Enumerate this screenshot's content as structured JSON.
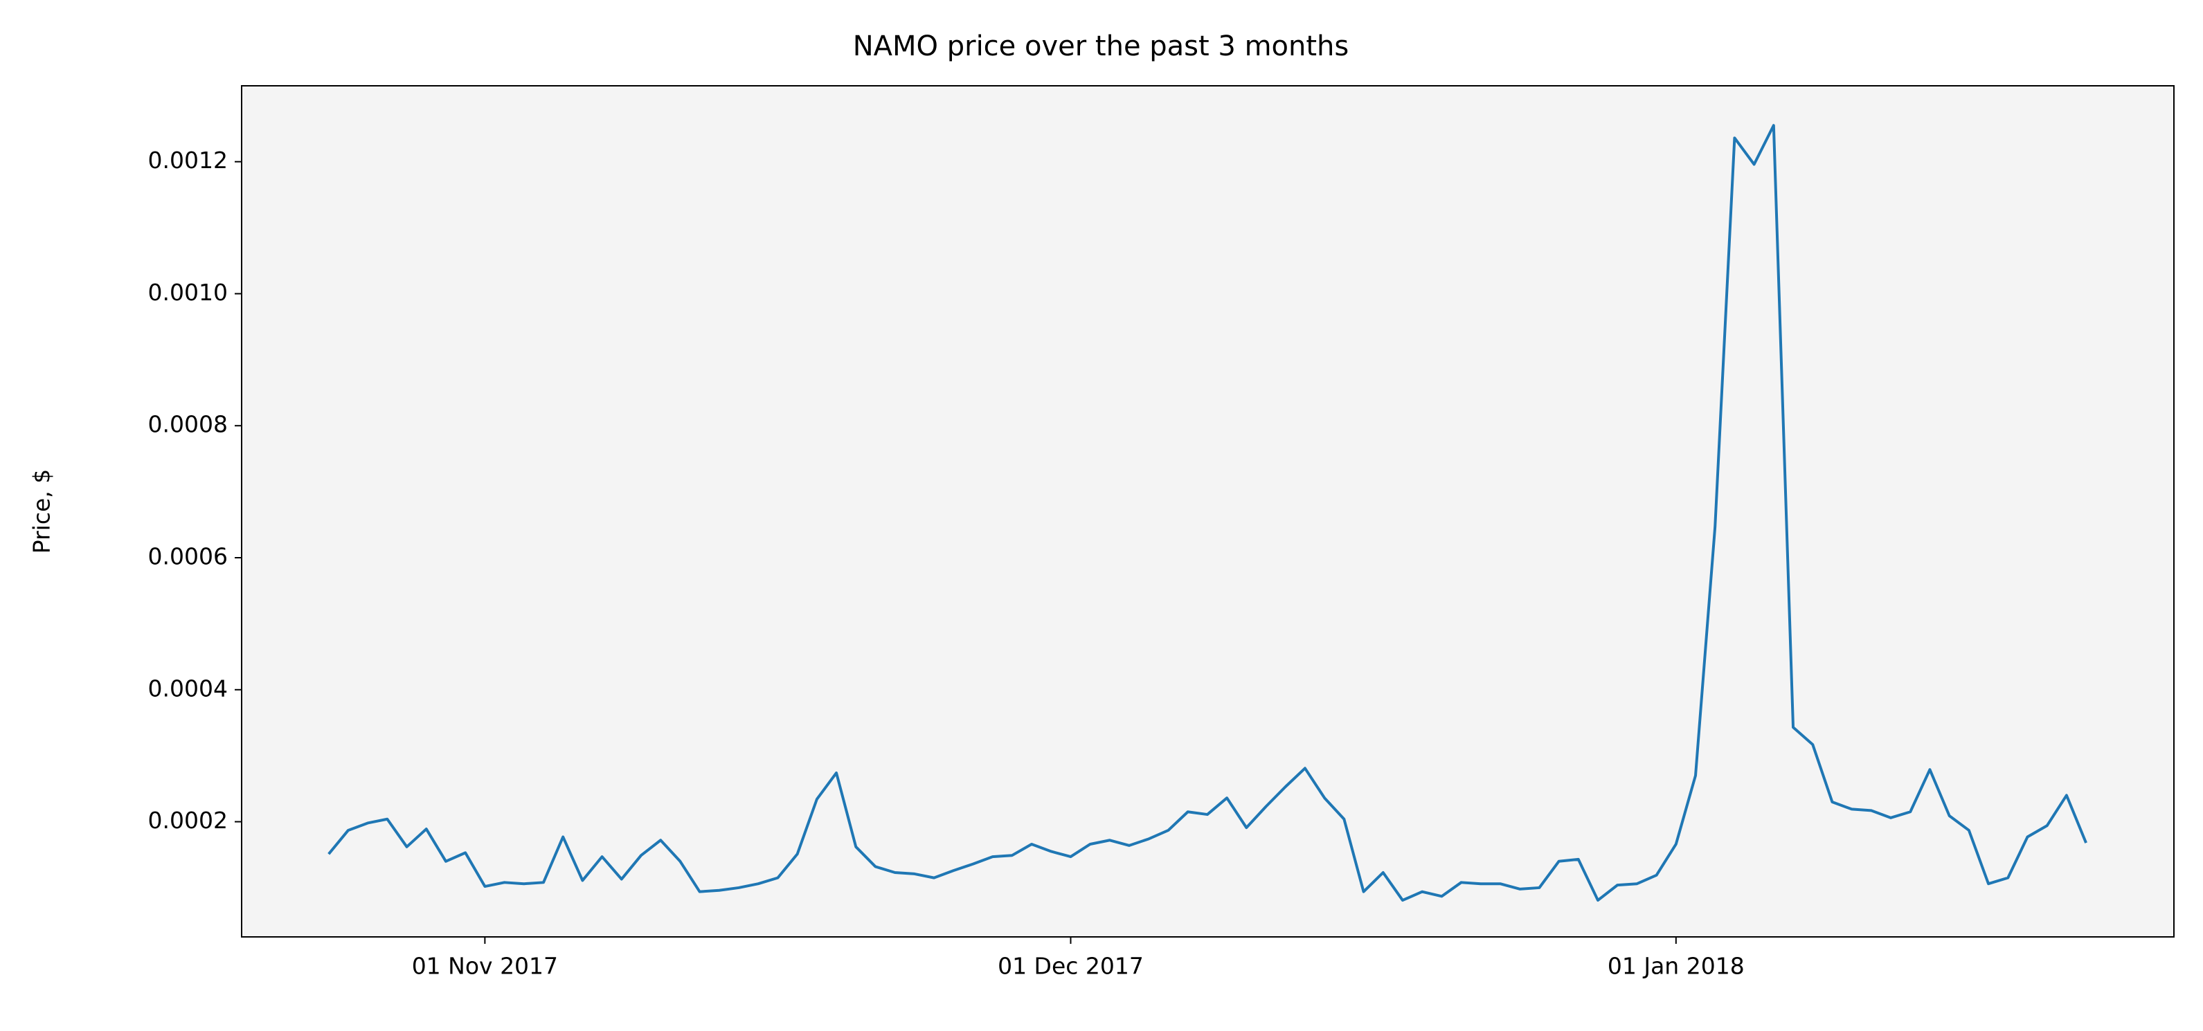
{
  "chart_data": {
    "type": "line",
    "title": "NAMO price over the past 3 months",
    "ylabel": "Price, $",
    "x": [
      "2017-10-24",
      "2017-10-25",
      "2017-10-26",
      "2017-10-27",
      "2017-10-28",
      "2017-10-29",
      "2017-10-30",
      "2017-10-31",
      "2017-11-01",
      "2017-11-02",
      "2017-11-03",
      "2017-11-04",
      "2017-11-05",
      "2017-11-06",
      "2017-11-07",
      "2017-11-08",
      "2017-11-09",
      "2017-11-10",
      "2017-11-11",
      "2017-11-12",
      "2017-11-13",
      "2017-11-14",
      "2017-11-15",
      "2017-11-16",
      "2017-11-17",
      "2017-11-18",
      "2017-11-19",
      "2017-11-20",
      "2017-11-21",
      "2017-11-22",
      "2017-11-23",
      "2017-11-24",
      "2017-11-25",
      "2017-11-26",
      "2017-11-27",
      "2017-11-28",
      "2017-11-29",
      "2017-11-30",
      "2017-12-01",
      "2017-12-02",
      "2017-12-03",
      "2017-12-04",
      "2017-12-05",
      "2017-12-06",
      "2017-12-07",
      "2017-12-08",
      "2017-12-09",
      "2017-12-10",
      "2017-12-11",
      "2017-12-12",
      "2017-12-13",
      "2017-12-14",
      "2017-12-15",
      "2017-12-16",
      "2017-12-17",
      "2017-12-18",
      "2017-12-19",
      "2017-12-20",
      "2017-12-21",
      "2017-12-22",
      "2017-12-23",
      "2017-12-24",
      "2017-12-25",
      "2017-12-26",
      "2017-12-27",
      "2017-12-28",
      "2017-12-29",
      "2017-12-30",
      "2017-12-31",
      "2018-01-01",
      "2018-01-02",
      "2018-01-03",
      "2018-01-04",
      "2018-01-05",
      "2018-01-06",
      "2018-01-07",
      "2018-01-08",
      "2018-01-09",
      "2018-01-10",
      "2018-01-11",
      "2018-01-12",
      "2018-01-13",
      "2018-01-14",
      "2018-01-15",
      "2018-01-16",
      "2018-01-17",
      "2018-01-18",
      "2018-01-19",
      "2018-01-20",
      "2018-01-21",
      "2018-01-22"
    ],
    "values": [
      0.000151,
      0.000187,
      0.000198,
      0.000204,
      0.000162,
      0.000189,
      0.00014,
      0.000153,
      0.000102,
      0.000108,
      0.000106,
      0.000108,
      0.000177,
      0.000111,
      0.000147,
      0.000113,
      0.000149,
      0.000172,
      0.00014,
      9.4e-05,
      9.6e-05,
      0.0001,
      0.000106,
      0.000115,
      0.000151,
      0.000234,
      0.000274,
      0.000162,
      0.000132,
      0.000123,
      0.000121,
      0.000115,
      0.000126,
      0.000136,
      0.000147,
      0.000149,
      0.000166,
      0.000155,
      0.000147,
      0.000166,
      0.000172,
      0.000164,
      0.000174,
      0.000187,
      0.000215,
      0.000211,
      0.000236,
      0.000191,
      0.000223,
      0.000253,
      0.000281,
      0.000236,
      0.000204,
      9.4e-05,
      0.000123,
      8.1e-05,
      9.4e-05,
      8.7e-05,
      0.000108,
      0.000106,
      0.000106,
      9.8e-05,
      0.0001,
      0.00014,
      0.000143,
      8.1e-05,
      0.000104,
      0.000106,
      0.000119,
      0.000166,
      0.00027,
      0.000647,
      0.001236,
      0.001196,
      0.001255,
      0.000343,
      0.000317,
      0.00023,
      0.000219,
      0.000217,
      0.000206,
      0.000215,
      0.000279,
      0.000209,
      0.000187,
      0.000106,
      0.000115,
      0.000177,
      0.000194,
      0.00024,
      0.000168
    ],
    "color": "#1f77b4",
    "xlim": [
      "2017-10-19T13:00:00Z",
      "2018-01-26T12:00:00Z"
    ],
    "xticks": [
      {
        "value": "2017-11-01",
        "label": "01 Nov 2017"
      },
      {
        "value": "2017-12-01",
        "label": "01 Dec 2017"
      },
      {
        "value": "2018-01-01",
        "label": "01 Jan 2018"
      }
    ],
    "ylim": [
      2.55e-05,
      0.001315
    ],
    "yticks": [
      0.0002,
      0.0004,
      0.0006,
      0.0008,
      {
        "value": 0.001,
        "label": "0.0010"
      },
      0.0012
    ],
    "background": "#f4f4f4"
  }
}
